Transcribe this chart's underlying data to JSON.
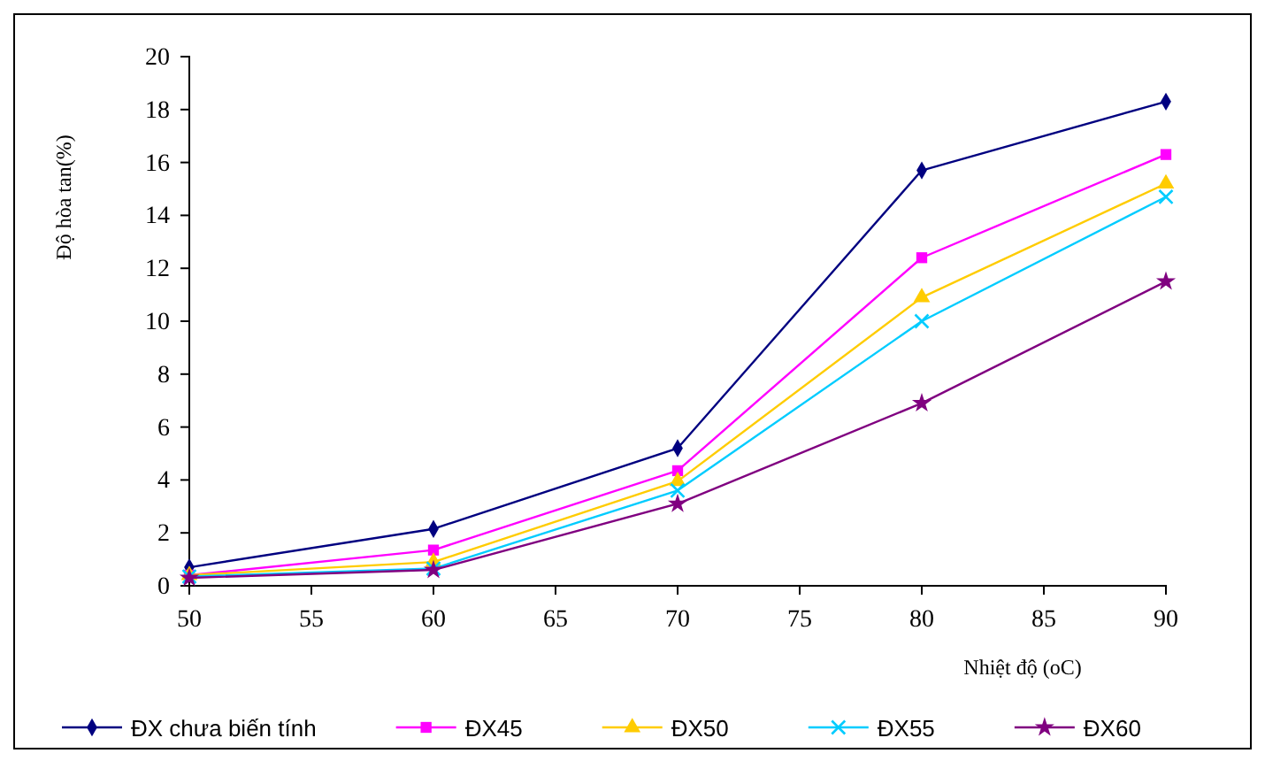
{
  "chart_data": {
    "type": "line",
    "xlabel": "Nhiệt độ (oC)",
    "ylabel": "Độ hòa tan(%)",
    "x": [
      50,
      60,
      70,
      80,
      90
    ],
    "xlim": [
      50,
      90
    ],
    "xticks": [
      50,
      55,
      60,
      65,
      70,
      75,
      80,
      85,
      90
    ],
    "ylim": [
      0,
      20
    ],
    "yticks": [
      0,
      2,
      4,
      6,
      8,
      10,
      12,
      14,
      16,
      18,
      20
    ],
    "grid": false,
    "legend": "bottom",
    "series": [
      {
        "name": "ĐX chưa biến tính",
        "color": "#000080",
        "marker": "diamond",
        "values": [
          0.7,
          2.15,
          5.2,
          15.7,
          18.3
        ]
      },
      {
        "name": "ĐX45",
        "color": "#ff00ff",
        "marker": "square",
        "values": [
          0.4,
          1.35,
          4.35,
          12.4,
          16.3
        ]
      },
      {
        "name": "ĐX50",
        "color": "#ffcc00",
        "marker": "triangle",
        "values": [
          0.4,
          0.9,
          3.95,
          10.9,
          15.2
        ]
      },
      {
        "name": "ĐX55",
        "color": "#00ccff",
        "marker": "cross",
        "values": [
          0.35,
          0.65,
          3.6,
          10.0,
          14.7
        ]
      },
      {
        "name": "ĐX60",
        "color": "#800080",
        "marker": "star",
        "values": [
          0.3,
          0.6,
          3.1,
          6.9,
          11.5
        ]
      }
    ]
  }
}
